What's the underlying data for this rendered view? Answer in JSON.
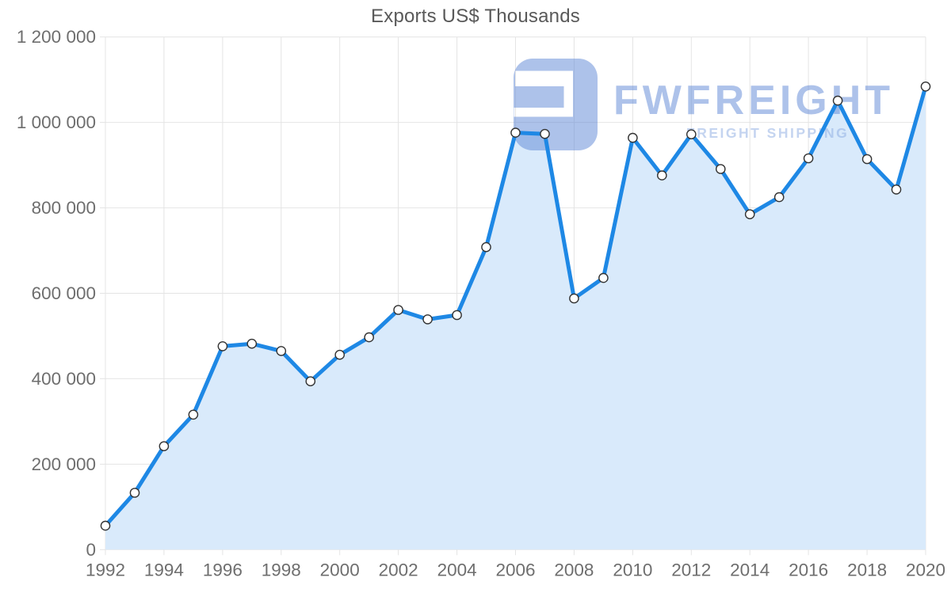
{
  "title": "Exports US$ Thousands",
  "watermark": {
    "brand": "FWFREIGHT",
    "tagline": "FREIGHT SHIPPING",
    "logo_color": "#5c85d6",
    "brand_color": "#5c85d6",
    "tagline_color": "#8aa9e2",
    "opacity": 0.5
  },
  "chart_data": {
    "type": "area",
    "title": "Exports US$ Thousands",
    "x": [
      1992,
      1993,
      1994,
      1995,
      1996,
      1997,
      1998,
      1999,
      2000,
      2001,
      2002,
      2003,
      2004,
      2005,
      2006,
      2007,
      2008,
      2009,
      2010,
      2011,
      2012,
      2013,
      2014,
      2015,
      2016,
      2017,
      2018,
      2019,
      2020
    ],
    "series": [
      {
        "name": "Exports US$ Thousands",
        "values": [
          56000,
          133000,
          242000,
          316000,
          476000,
          482000,
          465000,
          394000,
          456000,
          497000,
          561000,
          539000,
          549000,
          708000,
          976000,
          973000,
          588000,
          636000,
          964000,
          876000,
          972000,
          891000,
          785000,
          825000,
          916000,
          1051000,
          914000,
          843000,
          1084000
        ]
      }
    ],
    "xlabel": "",
    "ylabel": "",
    "ylim": [
      0,
      1200000
    ],
    "xlim": [
      1992,
      2020
    ],
    "ytick_interval": 200000,
    "xtick_interval": 2,
    "ytick_labels": [
      "0",
      "200 000",
      "400 000",
      "600 000",
      "800 000",
      "1 000 000",
      "1 200 000"
    ],
    "xtick_labels": [
      "1992",
      "1994",
      "1996",
      "1998",
      "2000",
      "2002",
      "2004",
      "2006",
      "2008",
      "2010",
      "2012",
      "2014",
      "2016",
      "2018",
      "2020"
    ],
    "grid": true,
    "legend": "none",
    "colors": {
      "line": "#1e88e5",
      "fill": "#d9eafb",
      "grid": "#e4e4e4",
      "labels": "#6e6e6e",
      "title": "#595959",
      "marker_fill": "#ffffff",
      "marker_stroke": "#333333"
    }
  }
}
